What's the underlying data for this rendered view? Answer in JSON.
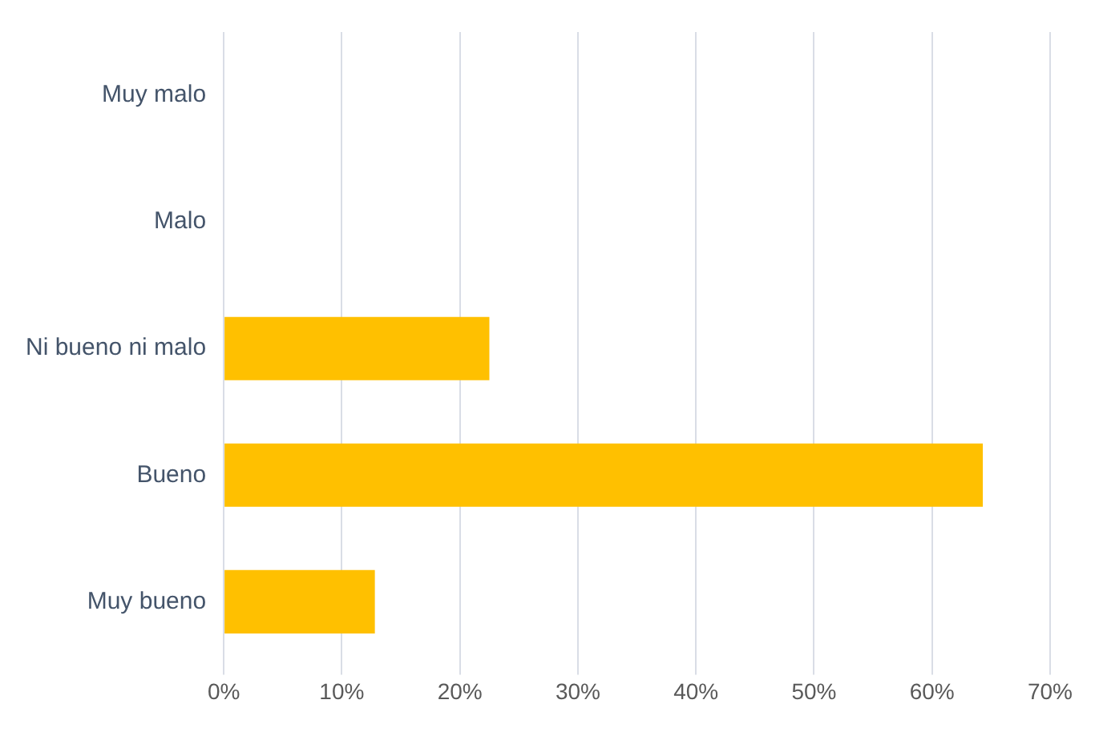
{
  "chart_data": {
    "type": "bar",
    "orientation": "horizontal",
    "categories": [
      "Muy malo",
      "Malo",
      "Ni bueno ni malo",
      "Bueno",
      "Muy bueno"
    ],
    "values": [
      0,
      0,
      22.5,
      64.3,
      12.8
    ],
    "color": "#ffc000",
    "xlim": [
      0,
      70
    ],
    "xticks": [
      {
        "value": 0,
        "label": "0%"
      },
      {
        "value": 10,
        "label": "10%"
      },
      {
        "value": 20,
        "label": "20%"
      },
      {
        "value": 30,
        "label": "30%"
      },
      {
        "value": 40,
        "label": "40%"
      },
      {
        "value": 50,
        "label": "50%"
      },
      {
        "value": 60,
        "label": "60%"
      },
      {
        "value": 70,
        "label": "70%"
      }
    ],
    "grid": "x"
  }
}
